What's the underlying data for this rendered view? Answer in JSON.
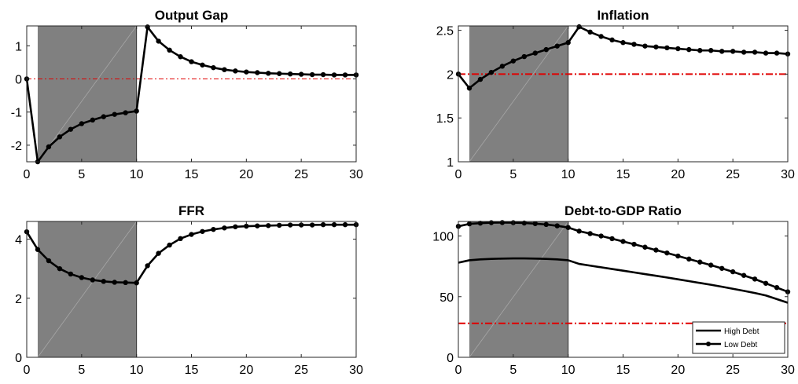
{
  "chart_data": [
    {
      "type": "line",
      "title": "Output Gap",
      "xlim": [
        0,
        30
      ],
      "ylim": [
        -2.5,
        1.6
      ],
      "xticks": [
        0,
        5,
        10,
        15,
        20,
        25,
        30
      ],
      "yticks": [
        -2,
        -1,
        0,
        1
      ],
      "shade": [
        1,
        10
      ],
      "reference": 0,
      "series": [
        {
          "values": [
            [
              0,
              0
            ],
            [
              1,
              -2.5
            ],
            [
              2,
              -2.05
            ],
            [
              3,
              -1.75
            ],
            [
              4,
              -1.52
            ],
            [
              5,
              -1.35
            ],
            [
              6,
              -1.24
            ],
            [
              7,
              -1.14
            ],
            [
              8,
              -1.07
            ],
            [
              9,
              -1.02
            ],
            [
              10,
              -0.97
            ],
            [
              11,
              1.57
            ],
            [
              12,
              1.14
            ],
            [
              13,
              0.87
            ],
            [
              14,
              0.67
            ],
            [
              15,
              0.52
            ],
            [
              16,
              0.42
            ],
            [
              17,
              0.34
            ],
            [
              18,
              0.28
            ],
            [
              19,
              0.24
            ],
            [
              20,
              0.21
            ],
            [
              21,
              0.19
            ],
            [
              22,
              0.17
            ],
            [
              23,
              0.16
            ],
            [
              24,
              0.15
            ],
            [
              25,
              0.14
            ],
            [
              26,
              0.13
            ],
            [
              27,
              0.13
            ],
            [
              28,
              0.12
            ],
            [
              29,
              0.12
            ],
            [
              30,
              0.12
            ]
          ]
        }
      ]
    },
    {
      "type": "line",
      "title": "Inflation",
      "xlim": [
        0,
        30
      ],
      "ylim": [
        1,
        2.55
      ],
      "xticks": [
        0,
        5,
        10,
        15,
        20,
        25,
        30
      ],
      "yticks": [
        1,
        1.5,
        2,
        2.5
      ],
      "shade": [
        1,
        10
      ],
      "reference": 2,
      "series": [
        {
          "values": [
            [
              0,
              2.0
            ],
            [
              1,
              1.84
            ],
            [
              2,
              1.94
            ],
            [
              3,
              2.02
            ],
            [
              4,
              2.09
            ],
            [
              5,
              2.15
            ],
            [
              6,
              2.2
            ],
            [
              7,
              2.24
            ],
            [
              8,
              2.28
            ],
            [
              9,
              2.32
            ],
            [
              10,
              2.36
            ],
            [
              11,
              2.54
            ],
            [
              12,
              2.48
            ],
            [
              13,
              2.43
            ],
            [
              14,
              2.39
            ],
            [
              15,
              2.36
            ],
            [
              16,
              2.34
            ],
            [
              17,
              2.32
            ],
            [
              18,
              2.31
            ],
            [
              19,
              2.3
            ],
            [
              20,
              2.29
            ],
            [
              21,
              2.28
            ],
            [
              22,
              2.27
            ],
            [
              23,
              2.27
            ],
            [
              24,
              2.26
            ],
            [
              25,
              2.26
            ],
            [
              26,
              2.25
            ],
            [
              27,
              2.25
            ],
            [
              28,
              2.24
            ],
            [
              29,
              2.24
            ],
            [
              30,
              2.23
            ]
          ]
        }
      ]
    },
    {
      "type": "line",
      "title": "FFR",
      "xlim": [
        0,
        30
      ],
      "ylim": [
        0,
        4.6
      ],
      "xticks": [
        0,
        5,
        10,
        15,
        20,
        25,
        30
      ],
      "yticks": [
        0,
        2,
        4
      ],
      "shade": [
        1,
        10
      ],
      "reference": 0,
      "series": [
        {
          "values": [
            [
              0,
              4.25
            ],
            [
              1,
              3.65
            ],
            [
              2,
              3.27
            ],
            [
              3,
              3.0
            ],
            [
              4,
              2.82
            ],
            [
              5,
              2.7
            ],
            [
              6,
              2.62
            ],
            [
              7,
              2.57
            ],
            [
              8,
              2.54
            ],
            [
              9,
              2.53
            ],
            [
              10,
              2.52
            ],
            [
              11,
              3.1
            ],
            [
              12,
              3.52
            ],
            [
              13,
              3.8
            ],
            [
              14,
              4.02
            ],
            [
              15,
              4.16
            ],
            [
              16,
              4.26
            ],
            [
              17,
              4.33
            ],
            [
              18,
              4.38
            ],
            [
              19,
              4.42
            ],
            [
              20,
              4.44
            ],
            [
              21,
              4.45
            ],
            [
              22,
              4.46
            ],
            [
              23,
              4.47
            ],
            [
              24,
              4.48
            ],
            [
              25,
              4.48
            ],
            [
              26,
              4.48
            ],
            [
              27,
              4.49
            ],
            [
              28,
              4.49
            ],
            [
              29,
              4.49
            ],
            [
              30,
              4.49
            ]
          ]
        }
      ]
    },
    {
      "type": "line",
      "title": "Debt-to-GDP Ratio",
      "xlim": [
        0,
        30
      ],
      "ylim": [
        0,
        112
      ],
      "xticks": [
        0,
        5,
        10,
        15,
        20,
        25,
        30
      ],
      "yticks": [
        0,
        50,
        100
      ],
      "shade": [
        1,
        10
      ],
      "reference": 28,
      "legend": "bottom-right",
      "series": [
        {
          "name": "High Debt",
          "markers": false,
          "values": [
            [
              0,
              78
            ],
            [
              1,
              80
            ],
            [
              2,
              80.7
            ],
            [
              3,
              81.1
            ],
            [
              4,
              81.4
            ],
            [
              5,
              81.5
            ],
            [
              6,
              81.5
            ],
            [
              7,
              81.4
            ],
            [
              8,
              81.1
            ],
            [
              9,
              80.7
            ],
            [
              10,
              80
            ],
            [
              11,
              77
            ],
            [
              12,
              75.6
            ],
            [
              13,
              74.2
            ],
            [
              14,
              72.8
            ],
            [
              15,
              71.4
            ],
            [
              16,
              70
            ],
            [
              17,
              68.6
            ],
            [
              18,
              67.2
            ],
            [
              19,
              65.8
            ],
            [
              20,
              64.3
            ],
            [
              21,
              62.8
            ],
            [
              22,
              61.3
            ],
            [
              23,
              59.8
            ],
            [
              24,
              58.2
            ],
            [
              25,
              56.5
            ],
            [
              26,
              54.8
            ],
            [
              27,
              53
            ],
            [
              28,
              51
            ],
            [
              29,
              48
            ],
            [
              30,
              45
            ]
          ]
        },
        {
          "name": "Low Debt",
          "markers": true,
          "values": [
            [
              0,
              108
            ],
            [
              1,
              110
            ],
            [
              2,
              110.6
            ],
            [
              3,
              111
            ],
            [
              4,
              111.1
            ],
            [
              5,
              111
            ],
            [
              6,
              110.7
            ],
            [
              7,
              110.2
            ],
            [
              8,
              109.5
            ],
            [
              9,
              108.4
            ],
            [
              10,
              107
            ],
            [
              11,
              104
            ],
            [
              12,
              102
            ],
            [
              13,
              100
            ],
            [
              14,
              97.8
            ],
            [
              15,
              95.5
            ],
            [
              16,
              93.2
            ],
            [
              17,
              90.8
            ],
            [
              18,
              88.4
            ],
            [
              19,
              86
            ],
            [
              20,
              83.5
            ],
            [
              21,
              81
            ],
            [
              22,
              78.5
            ],
            [
              23,
              76
            ],
            [
              24,
              73.3
            ],
            [
              25,
              70.5
            ],
            [
              26,
              67.5
            ],
            [
              27,
              64.5
            ],
            [
              28,
              61
            ],
            [
              29,
              57.5
            ],
            [
              30,
              54
            ]
          ]
        }
      ]
    }
  ]
}
